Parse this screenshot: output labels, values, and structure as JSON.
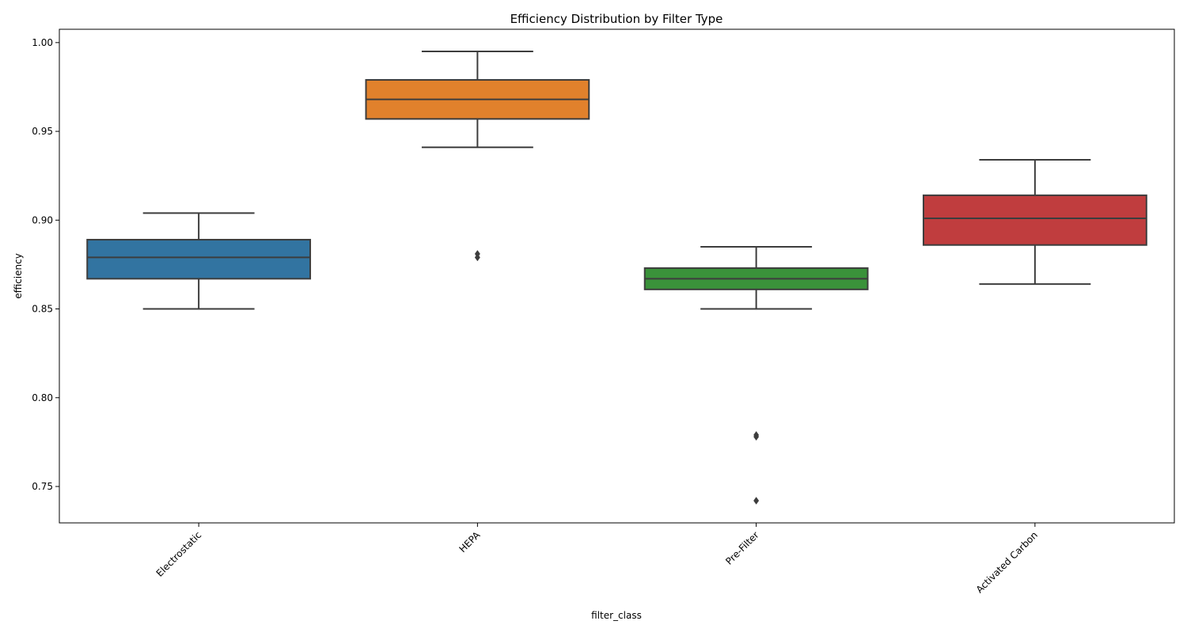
{
  "chart_data": {
    "type": "box",
    "title": "Efficiency Distribution by Filter Type",
    "xlabel": "filter_class",
    "ylabel": "efficiency",
    "ylim": [
      0.7295,
      1.0075
    ],
    "yticks": [
      0.75,
      0.8,
      0.85,
      0.9,
      0.95,
      1.0
    ],
    "ytick_labels": [
      "0.75",
      "0.80",
      "0.85",
      "0.90",
      "0.95",
      "1.00"
    ],
    "grid": false,
    "categories": [
      "Electrostatic",
      "HEPA",
      "Pre-Filter",
      "Activated Carbon"
    ],
    "boxes": [
      {
        "category": "Electrostatic",
        "whisker_low": 0.85,
        "q1": 0.867,
        "median": 0.879,
        "q3": 0.889,
        "whisker_high": 0.904,
        "outliers": [],
        "color": "#3274a1"
      },
      {
        "category": "HEPA",
        "whisker_low": 0.941,
        "q1": 0.957,
        "median": 0.968,
        "q3": 0.979,
        "whisker_high": 0.995,
        "outliers": [
          0.879,
          0.881
        ],
        "color": "#e1812c"
      },
      {
        "category": "Pre-Filter",
        "whisker_low": 0.85,
        "q1": 0.861,
        "median": 0.867,
        "q3": 0.873,
        "whisker_high": 0.885,
        "outliers": [
          0.778,
          0.779,
          0.742
        ],
        "color": "#3a923a"
      },
      {
        "category": "Activated Carbon",
        "whisker_low": 0.864,
        "q1": 0.886,
        "median": 0.901,
        "q3": 0.914,
        "whisker_high": 0.934,
        "outliers": [],
        "color": "#c03d3e"
      }
    ],
    "line_color": "#3d3d3d"
  }
}
